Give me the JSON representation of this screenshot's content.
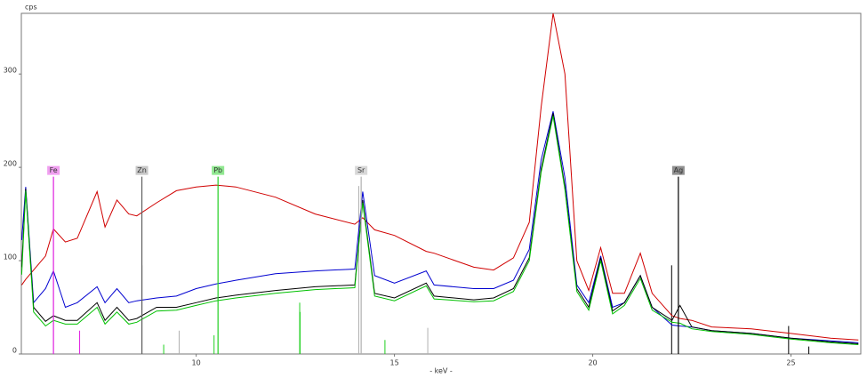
{
  "chart_data": {
    "type": "line",
    "y_label": "cps",
    "x_label": "- keV -",
    "xlim": [
      5.59,
      26.76
    ],
    "ylim": [
      0,
      365
    ],
    "xticks": [
      10,
      15,
      20,
      25
    ],
    "yticks": [
      0,
      100,
      200,
      300
    ],
    "x": [
      5.6,
      5.7,
      5.9,
      6.2,
      6.4,
      6.7,
      7.0,
      7.5,
      7.7,
      8.0,
      8.3,
      8.5,
      9.0,
      9.5,
      10,
      10.5,
      11,
      12,
      13,
      14,
      14.2,
      14.5,
      15,
      15.8,
      16,
      17,
      17.5,
      18,
      18.4,
      18.7,
      19.0,
      19.3,
      19.6,
      19.9,
      20.2,
      20.5,
      20.8,
      21.2,
      21.5,
      22,
      22.2,
      22.5,
      23,
      24,
      25,
      26,
      26.7
    ],
    "series": [
      {
        "color": "#d00000",
        "values": [
          74,
          80,
          90,
          105,
          134,
          120,
          124,
          174,
          136,
          165,
          150,
          148,
          162,
          175,
          179,
          181,
          179,
          168,
          150,
          139,
          146,
          133,
          127,
          110,
          108,
          93,
          90,
          103,
          141,
          265,
          365,
          300,
          100,
          68,
          114,
          65,
          65,
          108,
          65,
          41,
          38,
          36,
          29,
          27,
          22,
          17,
          15
        ]
      },
      {
        "color": "#0000d0",
        "values": [
          122,
          179,
          55,
          70,
          89,
          50,
          55,
          72,
          55,
          70,
          55,
          57,
          60,
          62,
          70,
          75,
          79,
          86,
          89,
          91,
          174,
          84,
          76,
          89,
          74,
          70,
          70,
          79,
          112,
          208,
          260,
          189,
          74,
          55,
          105,
          50,
          55,
          84,
          50,
          31,
          30,
          29,
          25,
          22,
          17,
          14,
          12
        ]
      },
      {
        "color": "#000000",
        "values": [
          93,
          177,
          50,
          35,
          41,
          36,
          36,
          55,
          36,
          50,
          36,
          38,
          50,
          50,
          55,
          60,
          63,
          68,
          72,
          74,
          165,
          65,
          60,
          76,
          62,
          58,
          60,
          70,
          103,
          198,
          258,
          179,
          70,
          50,
          103,
          46,
          55,
          84,
          50,
          36,
          52,
          29,
          25,
          22,
          17,
          13,
          11
        ]
      },
      {
        "color": "#00c000",
        "values": [
          85,
          175,
          45,
          30,
          36,
          32,
          32,
          50,
          32,
          45,
          32,
          34,
          46,
          47,
          52,
          57,
          60,
          65,
          69,
          71,
          162,
          62,
          57,
          73,
          59,
          56,
          57,
          67,
          100,
          195,
          255,
          176,
          67,
          47,
          100,
          43,
          52,
          81,
          47,
          34,
          33,
          27,
          24,
          21,
          16,
          12,
          10
        ]
      }
    ],
    "markers": [
      {
        "label": "Fe",
        "x": 6.4,
        "height": 190,
        "color": "#e020e0",
        "box": "#f0a0f0"
      },
      {
        "label": "Zn",
        "x": 8.63,
        "height": 190,
        "color": "#606060",
        "box": "#c8c8c8"
      },
      {
        "label": "Pb",
        "x": 10.55,
        "height": 190,
        "color": "#20d020",
        "box": "#90e890"
      },
      {
        "label": "Sr",
        "x": 14.16,
        "height": 190,
        "color": "#b0b0b0",
        "box": "#d8d8d8"
      },
      {
        "label": "Ag",
        "x": 22.16,
        "height": 190,
        "color": "#000000",
        "box": "#909090"
      }
    ],
    "element_lines": [
      {
        "x": 7.06,
        "height": 25,
        "color": "#e020e0"
      },
      {
        "x": 8.63,
        "height": 95,
        "color": "#000000"
      },
      {
        "x": 9.18,
        "height": 10,
        "color": "#20d020"
      },
      {
        "x": 9.57,
        "height": 25,
        "color": "#b0b0b0"
      },
      {
        "x": 10.45,
        "height": 20,
        "color": "#20d020"
      },
      {
        "x": 12.61,
        "height": 55,
        "color": "#20d020"
      },
      {
        "x": 12.62,
        "height": 45,
        "color": "#20d020"
      },
      {
        "x": 14.1,
        "height": 180,
        "color": "#b0b0b0"
      },
      {
        "x": 14.76,
        "height": 15,
        "color": "#20d020"
      },
      {
        "x": 15.84,
        "height": 28,
        "color": "#b0b0b0"
      },
      {
        "x": 21.99,
        "height": 95,
        "color": "#000000"
      },
      {
        "x": 24.94,
        "height": 30,
        "color": "#000000"
      },
      {
        "x": 25.45,
        "height": 8,
        "color": "#000000"
      }
    ]
  }
}
